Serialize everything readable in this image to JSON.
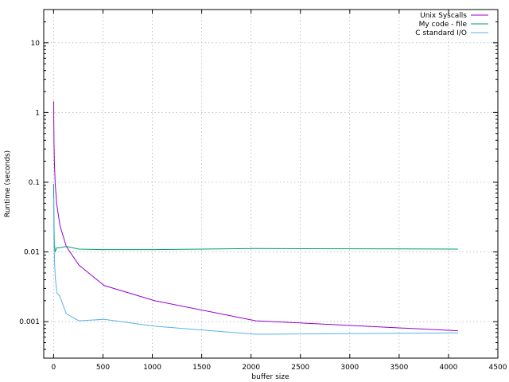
{
  "chart_data": {
    "type": "line",
    "title": "",
    "xlabel": "buffer size",
    "ylabel": "Runtime (seconds)",
    "xlim": [
      -100,
      4500
    ],
    "ylim": [
      0.0003,
      30
    ],
    "yscale": "log",
    "grid": true,
    "legend_position": "top-right",
    "x_ticks": [
      0,
      500,
      1000,
      1500,
      2000,
      2500,
      3000,
      3500,
      4000,
      4500
    ],
    "x_tick_labels": [
      "0",
      "500",
      "1000",
      "1500",
      "2000",
      "2500",
      "3000",
      "3500",
      "4000",
      "4500"
    ],
    "y_ticks": [
      0.001,
      0.01,
      0.1,
      1,
      10
    ],
    "y_tick_labels": [
      "0.001",
      "0.01",
      "0.1",
      "1",
      "10"
    ],
    "series": [
      {
        "name": "Unix Syscalls",
        "color": "#9400d3",
        "x": [
          1,
          2,
          4,
          8,
          16,
          32,
          64,
          128,
          256,
          512,
          1024,
          2048,
          4096
        ],
        "y": [
          1.45,
          0.73,
          0.37,
          0.19,
          0.095,
          0.048,
          0.024,
          0.012,
          0.0065,
          0.0033,
          0.002,
          0.00103,
          0.00074
        ]
      },
      {
        "name": "My code - file",
        "color": "#009e73",
        "x": [
          1,
          2,
          4,
          8,
          16,
          32,
          64,
          128,
          256,
          512,
          1024,
          2048,
          4096
        ],
        "y": [
          0.095,
          0.05,
          0.025,
          0.013,
          0.01,
          0.0115,
          0.0115,
          0.012,
          0.011,
          0.0108,
          0.0108,
          0.0112,
          0.011
        ]
      },
      {
        "name": "C standard I/O",
        "color": "#56b4e9",
        "x": [
          1,
          2,
          4,
          8,
          16,
          32,
          64,
          128,
          256,
          512,
          1024,
          2048,
          4096
        ],
        "y": [
          0.06,
          0.03,
          0.015,
          0.008,
          0.0045,
          0.0026,
          0.0023,
          0.0013,
          0.00103,
          0.00108,
          0.00086,
          0.00066,
          0.00069
        ]
      }
    ]
  }
}
